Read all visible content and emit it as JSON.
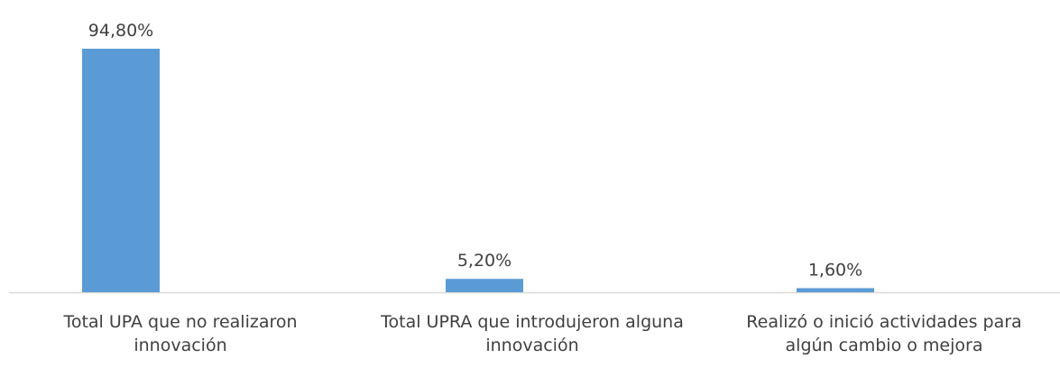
{
  "chart_data": {
    "type": "bar",
    "categories": [
      "Total UPA que no realizaron innovación",
      "Total UPRA que introdujeron alguna innovación",
      "Realizó o inició actividades para algún cambio o mejora"
    ],
    "values": [
      94.8,
      5.2,
      1.6
    ],
    "value_labels": [
      "94,80%",
      "5,20%",
      "1,60%"
    ],
    "color": "#5b9bd5"
  }
}
